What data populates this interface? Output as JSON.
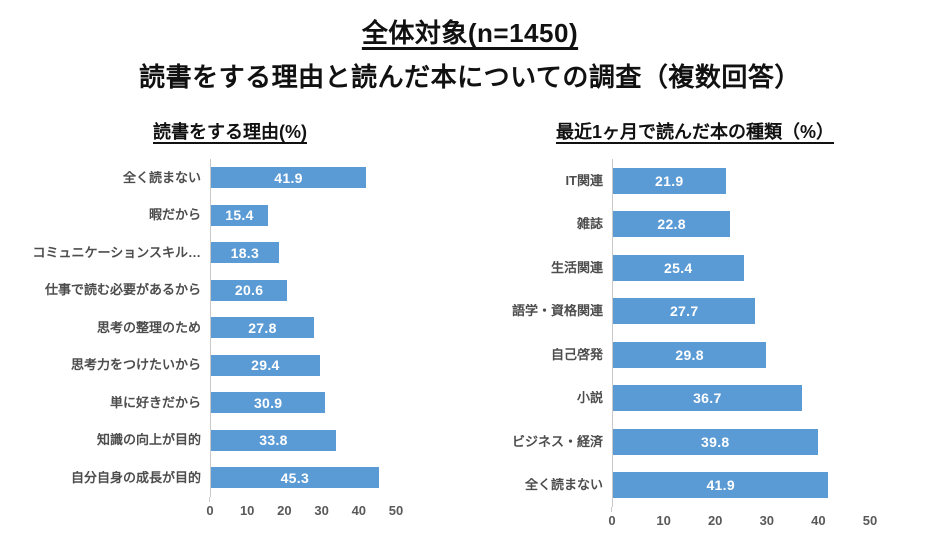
{
  "header": {
    "title_line1": "全体対象(n=1450)",
    "title_line2": "読書をする理由と読んだ本についての調査（複数回答）"
  },
  "colors": {
    "bar": "#5B9BD5",
    "value_label": "#FFFFFF",
    "category_label": "#4D4D4D",
    "axis_label": "#595959",
    "axis_line": "#C9C9C9",
    "title": "#111111"
  },
  "chart_data": [
    {
      "type": "bar",
      "orientation": "horizontal",
      "title": "読書をする理由(%)",
      "categories": [
        "全く読まない",
        "暇だから",
        "コミュニケーションスキル…",
        "仕事で読む必要があるから",
        "思考の整理のため",
        "思考力をつけたいから",
        "単に好きだから",
        "知識の向上が目的",
        "自分自身の成長が目的"
      ],
      "values": [
        41.9,
        15.4,
        18.3,
        20.6,
        27.8,
        29.4,
        30.9,
        33.8,
        45.3
      ],
      "xlim": [
        0,
        50
      ],
      "x_ticks": [
        0,
        10,
        20,
        30,
        40,
        50
      ],
      "grid": false,
      "legend": "none",
      "bar_color": "#5B9BD5",
      "value_labels_position": "center-inside"
    },
    {
      "type": "bar",
      "orientation": "horizontal",
      "title": "最近1ヶ月で読んだ本の種類（%）",
      "categories": [
        "IT関連",
        "雑誌",
        "生活関連",
        "語学・資格関連",
        "自己啓発",
        "小説",
        "ビジネス・経済",
        "全く読まない"
      ],
      "values": [
        21.9,
        22.8,
        25.4,
        27.7,
        29.8,
        36.7,
        39.8,
        41.9
      ],
      "xlim": [
        0,
        50
      ],
      "x_ticks": [
        0,
        10,
        20,
        30,
        40,
        50
      ],
      "grid": false,
      "legend": "none",
      "bar_color": "#5B9BD5",
      "value_labels_position": "center-inside"
    }
  ]
}
